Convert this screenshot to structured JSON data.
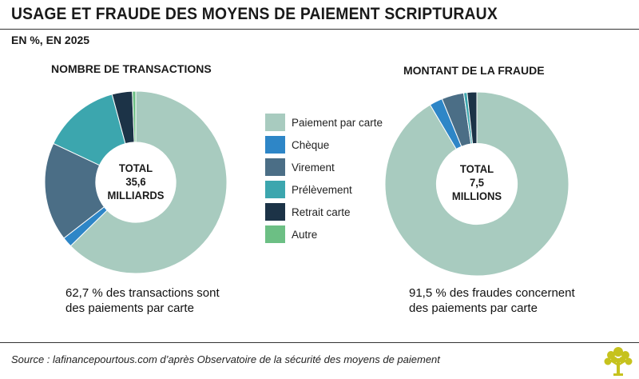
{
  "title": "USAGE ET FRAUDE DES MOYENS DE PAIEMENT SCRIPTURAUX",
  "subtitle": "EN %, EN 2025",
  "chart_data": [
    {
      "type": "pie",
      "title": "NOMBRE DE TRANSACTIONS",
      "center_label": [
        "TOTAL",
        "35,6",
        "MILLIARDS"
      ],
      "categories": [
        "Paiement par carte",
        "Chèque",
        "Virement",
        "Prélèvement",
        "Retrait carte",
        "Autre"
      ],
      "values": [
        62.7,
        1.8,
        17.5,
        13.8,
        3.6,
        0.6
      ],
      "caption": [
        "62,7 % des transactions sont",
        "des paiements par carte"
      ]
    },
    {
      "type": "pie",
      "title": "MONTANT DE LA FRAUDE",
      "center_label": [
        "TOTAL",
        "7,5",
        "MILLIONS"
      ],
      "categories": [
        "Paiement par carte",
        "Chèque",
        "Virement",
        "Prélèvement",
        "Retrait carte",
        "Autre"
      ],
      "values": [
        91.5,
        2.3,
        3.9,
        0.6,
        1.7,
        0
      ],
      "caption": [
        "91,5  % des fraudes concernent",
        "des paiements par carte"
      ]
    }
  ],
  "legend": [
    {
      "label": "Paiement par carte",
      "color": "#a8cbbf"
    },
    {
      "label": "Chèque",
      "color": "#2e86c7"
    },
    {
      "label": "Virement",
      "color": "#4b6e86"
    },
    {
      "label": "Prélèvement",
      "color": "#3ca6ae"
    },
    {
      "label": "Retrait carte",
      "color": "#1c3347"
    },
    {
      "label": "Autre",
      "color": "#6cbf84"
    }
  ],
  "source": "Source : lafinancepourtous.com d’après Observatoire de la sécurité des moyens de paiement"
}
